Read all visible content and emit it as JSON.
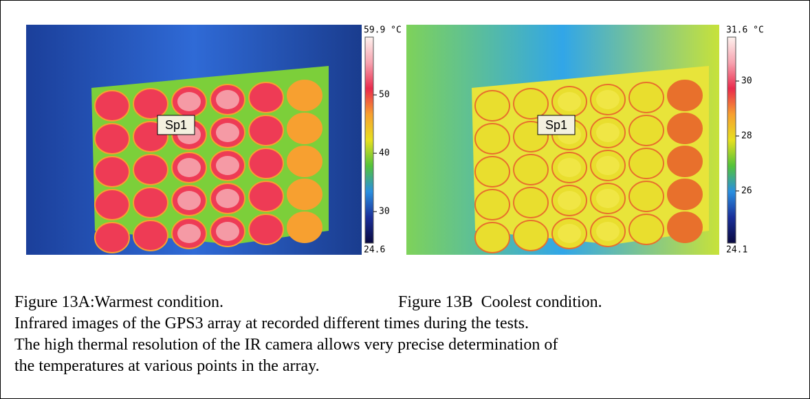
{
  "figures": [
    {
      "spot_label": "Sp1",
      "colorbar": {
        "max": {
          "value": 59.9,
          "label": "59.9 °C"
        },
        "min": {
          "value": 24.6,
          "label": "24.6"
        },
        "ticks": [
          50,
          40,
          30
        ]
      }
    },
    {
      "spot_label": "Sp1",
      "colorbar": {
        "max": {
          "value": 31.6,
          "label": "31.6 °C"
        },
        "min": {
          "value": 24.1,
          "label": "24.1"
        },
        "ticks": [
          30,
          28,
          26
        ]
      }
    }
  ],
  "captions": [
    "Figure 13A:Warmest condition.",
    "Figure 13B  Coolest condition."
  ],
  "body": [
    "Infrared images of the GPS3 array at recorded different times during the tests.",
    "The high thermal resolution of the IR camera allows very precise determination of",
    "the temperatures at various points in the array."
  ]
}
